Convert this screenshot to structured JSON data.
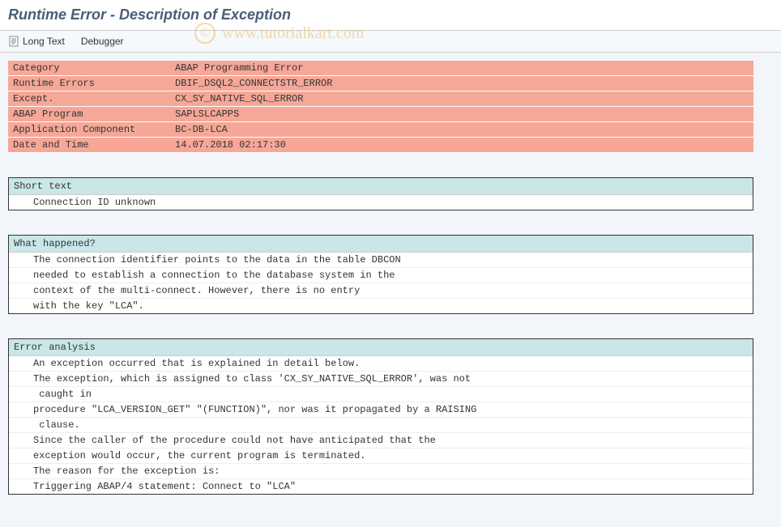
{
  "title": "Runtime Error - Description of Exception",
  "toolbar": {
    "longtext_label": "Long Text",
    "debugger_label": "Debugger"
  },
  "watermark": {
    "symbol": "©",
    "text": "www.tutorialkart.com"
  },
  "info": {
    "rows": [
      {
        "label": "Category",
        "value": "ABAP Programming Error"
      },
      {
        "label": "Runtime Errors",
        "value": "DBIF_DSQL2_CONNECTSTR_ERROR"
      },
      {
        "label": "Except.",
        "value": "CX_SY_NATIVE_SQL_ERROR"
      },
      {
        "label": "ABAP Program",
        "value": "SAPLSLCAPPS"
      },
      {
        "label": "Application Component",
        "value": "BC-DB-LCA"
      },
      {
        "label": "Date and Time",
        "value": "14.07.2018 02:17:30"
      }
    ],
    "row_bg": "#f6a797"
  },
  "sections": [
    {
      "header": "Short text",
      "lines": [
        "Connection ID unknown"
      ]
    },
    {
      "header": "What happened?",
      "lines": [
        "The connection identifier points to the data in the table DBCON",
        "needed to establish a connection to the database system in the",
        "context of the multi-connect. However, there is no entry",
        "with the key \"LCA\"."
      ]
    },
    {
      "header": "Error analysis",
      "lines": [
        "An exception occurred that is explained in detail below.",
        "The exception, which is assigned to class 'CX_SY_NATIVE_SQL_ERROR', was not",
        " caught in",
        "procedure \"LCA_VERSION_GET\" \"(FUNCTION)\", nor was it propagated by a RAISING",
        " clause.",
        "Since the caller of the procedure could not have anticipated that the",
        "exception would occur, the current program is terminated.",
        "The reason for the exception is:",
        "Triggering ABAP/4 statement: Connect to \"LCA\""
      ]
    }
  ],
  "colors": {
    "section_header_bg": "#c9e6e8",
    "body_bg": "#f2f6fa",
    "title_color": "#4a5d7a"
  }
}
